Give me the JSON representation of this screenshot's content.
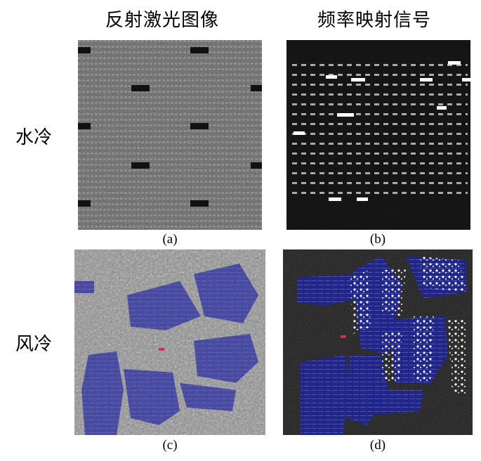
{
  "columns": {
    "left": "反射激光图像",
    "right": "频率映射信号"
  },
  "rows": {
    "top": "水冷",
    "bottom": "风冷"
  },
  "captions": {
    "a": "(a)",
    "b": "(b)",
    "c": "(c)",
    "d": "(d)"
  }
}
